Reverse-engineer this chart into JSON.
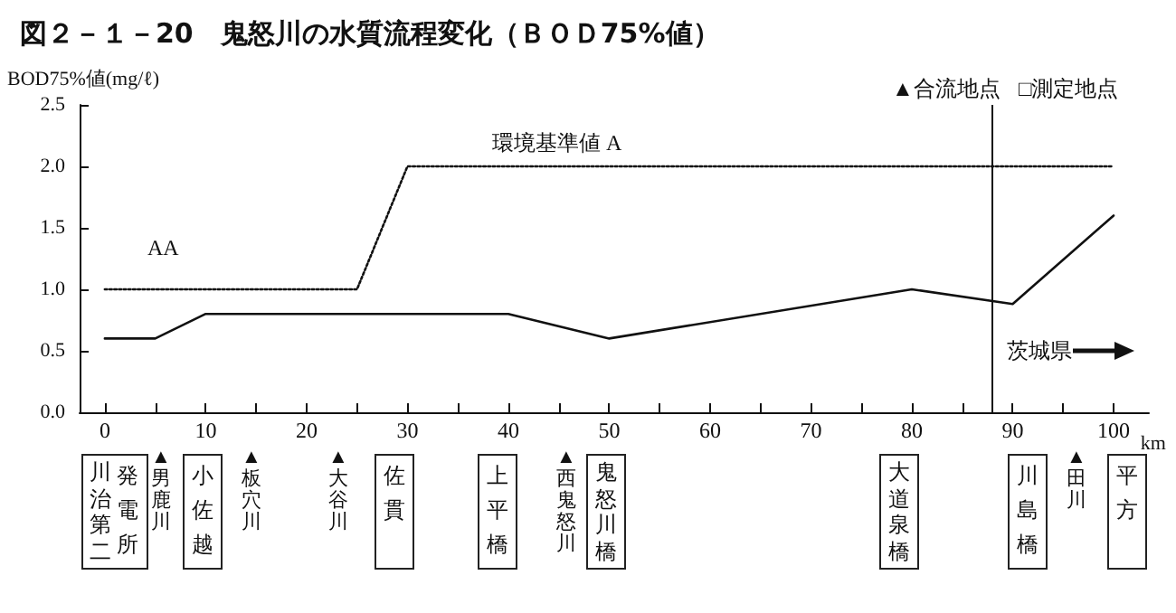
{
  "chart_data": {
    "type": "line",
    "title": "図２－１－20　鬼怒川の水質流程変化（ＢＯＤ75%値）",
    "ylabel": "BOD75%値(mg/ℓ)",
    "xlabel": "km",
    "series": [
      {
        "color": "#111111",
        "line_style": "solid",
        "x": [
          0,
          5,
          10,
          40,
          50,
          80,
          90,
          100
        ],
        "values": [
          0.6,
          0.6,
          0.8,
          0.8,
          0.6,
          1.0,
          0.88,
          1.6
        ]
      },
      {
        "color": "#111111",
        "line_style": "dotted",
        "x": [
          0,
          25,
          30,
          100
        ],
        "values": [
          1.0,
          1.0,
          2.0,
          2.0
        ]
      }
    ],
    "xlim": [
      -2.5,
      103.5
    ],
    "xticks": [
      {
        "value": 0,
        "label": "0"
      },
      {
        "value": 5,
        "label": null
      },
      {
        "value": 10,
        "label": "10"
      },
      {
        "value": 15,
        "label": null
      },
      {
        "value": 20,
        "label": "20"
      },
      {
        "value": 25,
        "label": null
      },
      {
        "value": 30,
        "label": "30"
      },
      {
        "value": 35,
        "label": null
      },
      {
        "value": 40,
        "label": "40"
      },
      {
        "value": 45,
        "label": null
      },
      {
        "value": 50,
        "label": "50"
      },
      {
        "value": 55,
        "label": null
      },
      {
        "value": 60,
        "label": "60"
      },
      {
        "value": 65,
        "label": null
      },
      {
        "value": 70,
        "label": "70"
      },
      {
        "value": 75,
        "label": null
      },
      {
        "value": 80,
        "label": "80"
      },
      {
        "value": 85,
        "label": null
      },
      {
        "value": 90,
        "label": "90"
      },
      {
        "value": 95,
        "label": null
      },
      {
        "value": 100,
        "label": "100"
      }
    ],
    "ylim": [
      0,
      2.5
    ],
    "yticks": [
      {
        "value": 0,
        "label": "0.0"
      },
      {
        "value": 0.5,
        "label": "0.5"
      },
      {
        "value": 1,
        "label": "1.0"
      },
      {
        "value": 1.5,
        "label": "1.5"
      },
      {
        "value": 2,
        "label": "2.0"
      },
      {
        "value": 2.5,
        "label": "2.5"
      }
    ],
    "grid": false,
    "marker": "none",
    "ref_lines": [
      {
        "axis": "x",
        "value": 88,
        "label": "茨城県",
        "color": "#111111"
      }
    ],
    "annotations": [
      "▲合流地点",
      "□測定地点",
      "AA",
      "環境基準値 A",
      "川治第二発電所",
      "▲男鹿川",
      "小佐越",
      "▲板穴川",
      "▲大谷川",
      "佐貫",
      "上平橋",
      "▲西鬼怒川",
      "鬼怒川橋",
      "大道泉橋",
      "川島橋",
      "▲田川",
      "平方"
    ]
  }
}
